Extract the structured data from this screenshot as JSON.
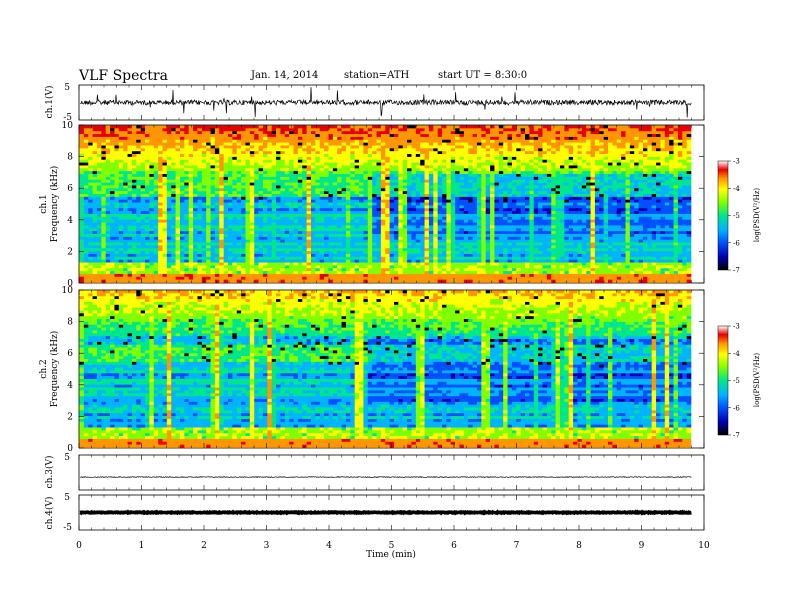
{
  "header": {
    "title": "VLF Spectra",
    "date": "Jan. 14, 2014",
    "station": "station=ATH",
    "start": "start UT = 8:30:0"
  },
  "chart_data": [
    {
      "type": "line",
      "name": "ch1-waveform",
      "ylabel": "ch.1(V)",
      "yticks": [
        "5",
        "-5"
      ],
      "ylim": [
        -5,
        5
      ],
      "baseline_v": 0.0
    },
    {
      "type": "heatmap",
      "name": "ch1-spectrogram",
      "ylabel": "ch.1 Frequency (kHz)",
      "ylim": [
        0,
        10
      ],
      "yticks": [
        "0",
        "2",
        "4",
        "6",
        "8",
        "10"
      ],
      "colorbar": {
        "label": "log(PSD(V²/Hz)",
        "ticks": [
          "-3",
          "-4",
          "-5",
          "-6",
          "-7"
        ],
        "range": [
          -7,
          -3
        ]
      }
    },
    {
      "type": "heatmap",
      "name": "ch2-spectrogram",
      "ylabel": "ch.2 Frequency (kHz)",
      "ylim": [
        0,
        10
      ],
      "yticks": [
        "0",
        "2",
        "4",
        "6",
        "8",
        "10"
      ],
      "colorbar": {
        "label": "log(PSD(V²/Hz)",
        "ticks": [
          "-3",
          "-4",
          "-5",
          "-6",
          "-7"
        ],
        "range": [
          -7,
          -3
        ]
      }
    },
    {
      "type": "line",
      "name": "ch3-waveform",
      "ylabel": "ch.3(V)",
      "yticks": [
        "5"
      ],
      "ylim": [
        -5,
        5
      ],
      "baseline_v": -1.3
    },
    {
      "type": "line",
      "name": "ch4-waveform",
      "ylabel": "ch.4(V)",
      "yticks": [
        "5",
        "-5"
      ],
      "ylim": [
        -5,
        5
      ],
      "baseline_v": 0.0
    }
  ],
  "xaxis": {
    "label": "Time (min)",
    "xlim": [
      0,
      10
    ],
    "ticks": [
      "0",
      "1",
      "2",
      "3",
      "4",
      "5",
      "6",
      "7",
      "8",
      "9",
      "10"
    ],
    "data_end_min": 9.8
  },
  "colors": {
    "ramp": [
      "#000000",
      "#0000b0",
      "#0050ff",
      "#00b4ff",
      "#00e68c",
      "#80ff00",
      "#ffff00",
      "#ff9600",
      "#e60000",
      "#ffffff"
    ]
  }
}
